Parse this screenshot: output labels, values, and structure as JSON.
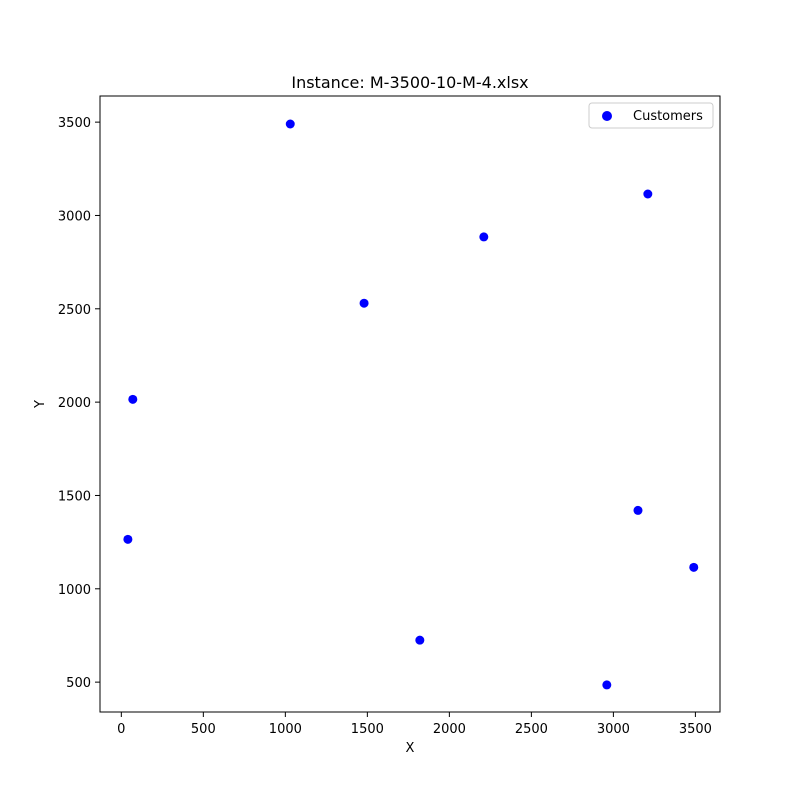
{
  "chart_data": {
    "type": "scatter",
    "title": "Instance: M-3500-10-M-4.xlsx",
    "xlabel": "X",
    "ylabel": "Y",
    "xlim": [
      -130,
      3650
    ],
    "ylim": [
      340,
      3640
    ],
    "xticks": [
      0,
      500,
      1000,
      1500,
      2000,
      2500,
      3000,
      3500
    ],
    "yticks": [
      500,
      1000,
      1500,
      2000,
      2500,
      3000,
      3500
    ],
    "grid": false,
    "legend": "top-right",
    "series": [
      {
        "name": "Customers",
        "color": "#0000ff",
        "marker": "circle",
        "points": [
          {
            "x": 1030,
            "y": 3490
          },
          {
            "x": 3210,
            "y": 3115
          },
          {
            "x": 2210,
            "y": 2885
          },
          {
            "x": 1480,
            "y": 2530
          },
          {
            "x": 70,
            "y": 2015
          },
          {
            "x": 3150,
            "y": 1420
          },
          {
            "x": 40,
            "y": 1265
          },
          {
            "x": 3490,
            "y": 1115
          },
          {
            "x": 1820,
            "y": 725
          },
          {
            "x": 2960,
            "y": 485
          }
        ]
      }
    ]
  }
}
